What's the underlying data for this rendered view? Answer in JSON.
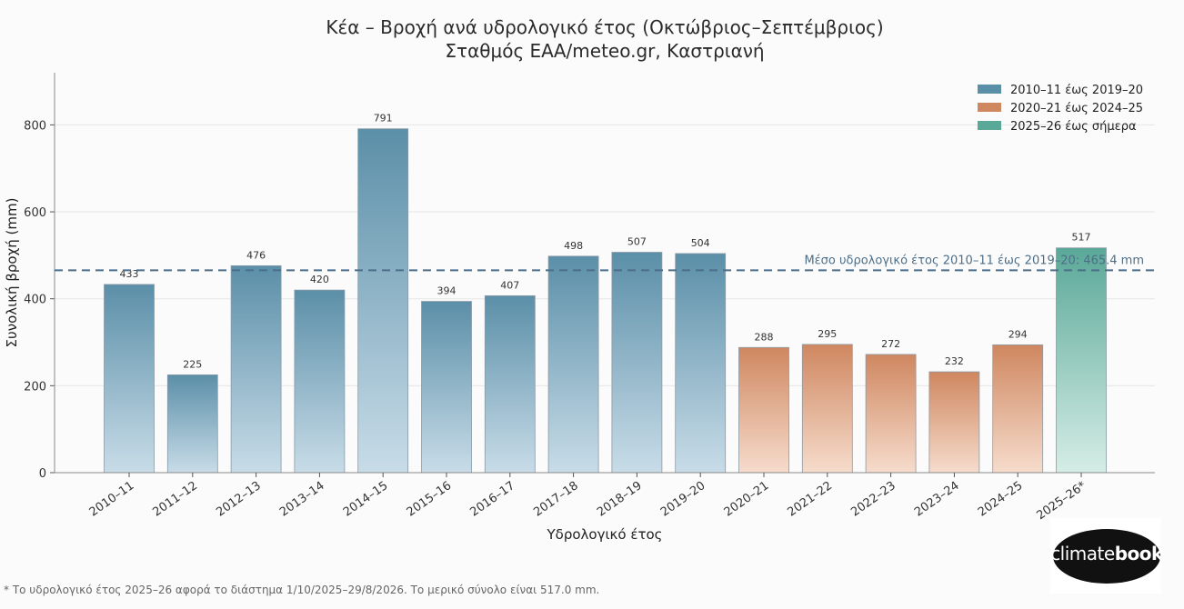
{
  "title": {
    "line1": "Κέα – Βροχή ανά υδρολογικό έτος (Οκτώβριος–Σεπτέμβριος)",
    "line2": "Σταθμός ΕΑΑ/meteo.gr, Καστριανή"
  },
  "footnote": "* Το υδρολογικό έτος 2025–26 αφορά το διάστημα 1/10/2025–29/8/2026.  Το μερικό σύνολο είναι 517.0 mm.",
  "logo": {
    "text_light": "climate",
    "text_bold": "book"
  },
  "colors": {
    "group1_top": "#5b8fa8",
    "group1_bottom": "#c8dce8",
    "group2_top": "#cf8760",
    "group2_bottom": "#f6dccc",
    "group3_top": "#5aa898",
    "group3_bottom": "#d5ede6",
    "mean_line": "#4d6e88"
  },
  "chart_data": {
    "type": "bar",
    "categories": [
      "2010–11",
      "2011–12",
      "2012–13",
      "2013–14",
      "2014–15",
      "2015–16",
      "2016–17",
      "2017–18",
      "2018–19",
      "2019–20",
      "2020–21",
      "2021–22",
      "2022–23",
      "2023–24",
      "2024–25",
      "2025–26*"
    ],
    "values": [
      433,
      225,
      476,
      420,
      791,
      394,
      407,
      498,
      507,
      504,
      288,
      295,
      272,
      232,
      294,
      517
    ],
    "groups": [
      0,
      0,
      0,
      0,
      0,
      0,
      0,
      0,
      0,
      0,
      1,
      1,
      1,
      1,
      1,
      2
    ],
    "legend": [
      "2010–11 έως 2019–20",
      "2020–21 έως 2024–25",
      "2025–26 έως σήμερα"
    ],
    "legend_position": "top-right",
    "xlabel": "Υδρολογικό έτος",
    "ylabel": "Συνολική βροχή (mm)",
    "ylim": [
      0,
      920
    ],
    "yticks": [
      0,
      200,
      400,
      600,
      800
    ],
    "grid": true,
    "mean_value": 465.4,
    "mean_label": "Μέσο υδρολογικό έτος 2010–11 έως 2019–20: 465.4 mm"
  }
}
